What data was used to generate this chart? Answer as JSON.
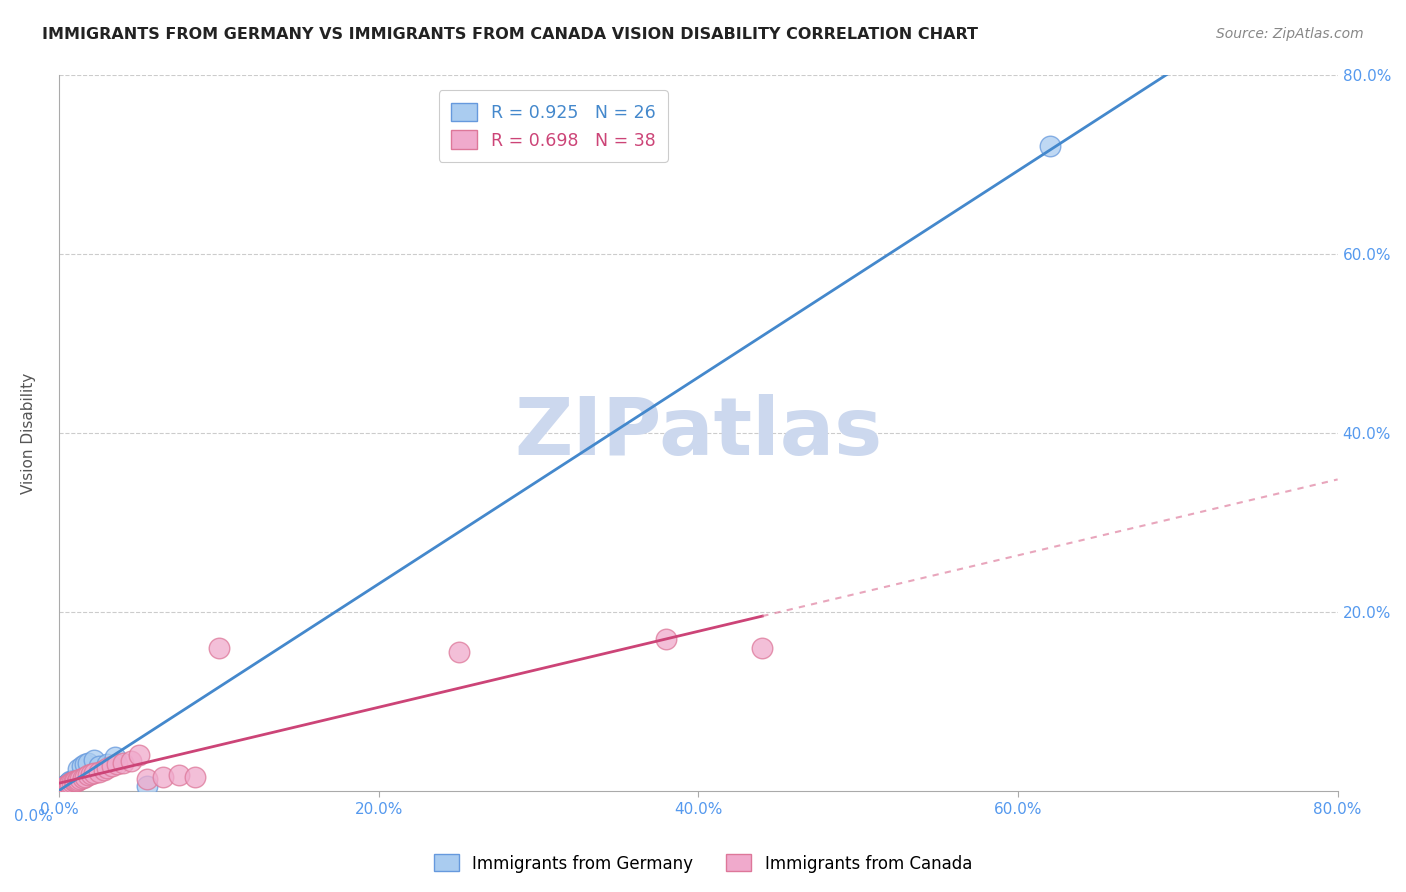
{
  "title": "IMMIGRANTS FROM GERMANY VS IMMIGRANTS FROM CANADA VISION DISABILITY CORRELATION CHART",
  "source": "Source: ZipAtlas.com",
  "ylabel": "Vision Disability",
  "xlim": [
    0,
    0.8
  ],
  "ylim": [
    0,
    0.8
  ],
  "xticks": [
    0.0,
    0.2,
    0.4,
    0.6,
    0.8
  ],
  "yticks": [
    0.2,
    0.4,
    0.6,
    0.8
  ],
  "xtick_labels": [
    "0.0%",
    "20.0%",
    "40.0%",
    "60.0%",
    "80.0%"
  ],
  "ytick_labels": [
    "20.0%",
    "40.0%",
    "60.0%",
    "80.0%"
  ],
  "tick_color": "#5599ee",
  "germany_color": "#aaccf0",
  "germany_edge_color": "#6699dd",
  "canada_color": "#f0aacc",
  "canada_edge_color": "#dd7799",
  "germany_R": 0.925,
  "germany_N": 26,
  "canada_R": 0.698,
  "canada_N": 38,
  "germany_line_color": "#4488cc",
  "canada_line_color": "#cc4477",
  "watermark": "ZIPatlas",
  "watermark_color": "#ccd8ee",
  "germany_scatter_x": [
    0.001,
    0.002,
    0.002,
    0.003,
    0.003,
    0.004,
    0.004,
    0.005,
    0.005,
    0.006,
    0.006,
    0.007,
    0.008,
    0.009,
    0.01,
    0.011,
    0.012,
    0.014,
    0.016,
    0.018,
    0.022,
    0.025,
    0.03,
    0.035,
    0.055,
    0.62
  ],
  "germany_scatter_y": [
    0.002,
    0.003,
    0.004,
    0.005,
    0.006,
    0.006,
    0.007,
    0.007,
    0.008,
    0.009,
    0.01,
    0.011,
    0.012,
    0.013,
    0.013,
    0.014,
    0.025,
    0.028,
    0.03,
    0.032,
    0.035,
    0.028,
    0.03,
    0.038,
    0.006,
    0.72
  ],
  "canada_scatter_x": [
    0.001,
    0.002,
    0.002,
    0.003,
    0.003,
    0.004,
    0.005,
    0.005,
    0.006,
    0.006,
    0.007,
    0.008,
    0.009,
    0.01,
    0.011,
    0.012,
    0.013,
    0.015,
    0.016,
    0.018,
    0.02,
    0.022,
    0.025,
    0.028,
    0.03,
    0.033,
    0.036,
    0.04,
    0.045,
    0.05,
    0.055,
    0.065,
    0.075,
    0.085,
    0.1,
    0.25,
    0.38,
    0.44
  ],
  "canada_scatter_y": [
    0.002,
    0.003,
    0.004,
    0.004,
    0.005,
    0.006,
    0.006,
    0.007,
    0.007,
    0.008,
    0.009,
    0.01,
    0.011,
    0.012,
    0.012,
    0.013,
    0.014,
    0.015,
    0.016,
    0.018,
    0.019,
    0.02,
    0.022,
    0.024,
    0.026,
    0.028,
    0.03,
    0.032,
    0.034,
    0.04,
    0.014,
    0.016,
    0.018,
    0.016,
    0.16,
    0.155,
    0.17,
    0.16
  ],
  "background_color": "#ffffff",
  "grid_color": "#cccccc"
}
